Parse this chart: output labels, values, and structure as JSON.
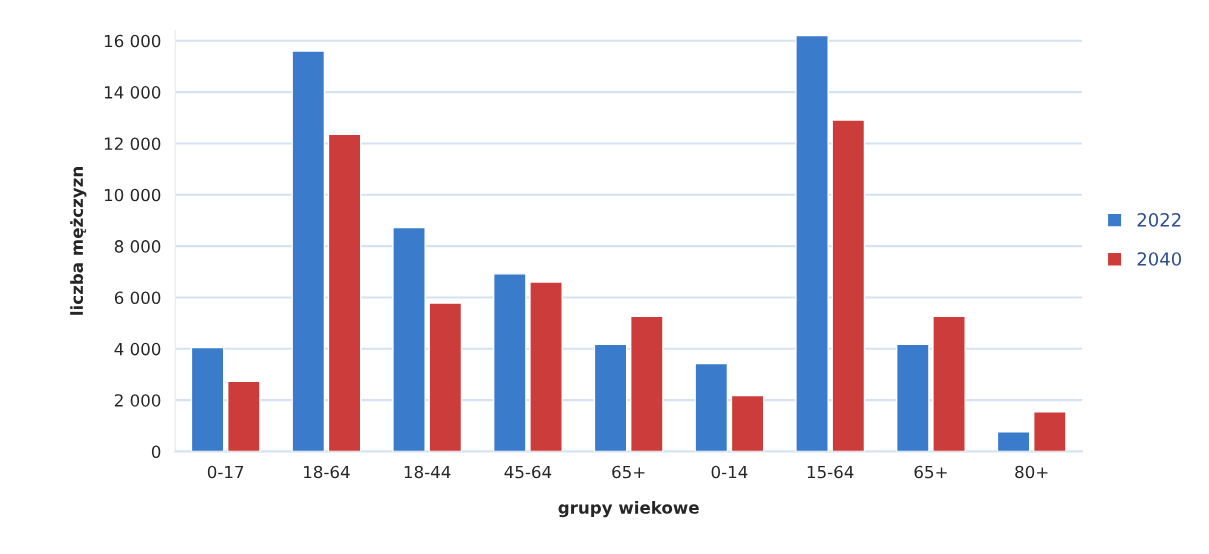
{
  "chart_data": {
    "type": "bar",
    "xlabel": "grupy wiekowe",
    "ylabel": "liczba mężczyzn",
    "categories": [
      "0-17",
      "18-64",
      "18-44",
      "45-64",
      "65+",
      "0-14",
      "15-64",
      "65+",
      "80+"
    ],
    "series": [
      {
        "name": "2022",
        "color": "#3a7bcb",
        "values": [
          4050,
          15600,
          8720,
          6920,
          4180,
          3430,
          16200,
          4180,
          770
        ]
      },
      {
        "name": "2040",
        "color": "#cc3c3a",
        "values": [
          2730,
          12360,
          5780,
          6600,
          5270,
          2180,
          12910,
          5270,
          1550
        ]
      }
    ],
    "ylim": [
      0,
      16400
    ],
    "yticks": [
      {
        "value": 0,
        "label": "0"
      },
      {
        "value": 2000,
        "label": "2 000"
      },
      {
        "value": 4000,
        "label": "4 000"
      },
      {
        "value": 6000,
        "label": "6 000"
      },
      {
        "value": 8000,
        "label": "8 000"
      },
      {
        "value": 10000,
        "label": "10 000"
      },
      {
        "value": 12000,
        "label": "12 000"
      },
      {
        "value": 14000,
        "label": "14 000"
      },
      {
        "value": 16000,
        "label": "16 000"
      }
    ],
    "grid": "y",
    "legend": "right"
  }
}
